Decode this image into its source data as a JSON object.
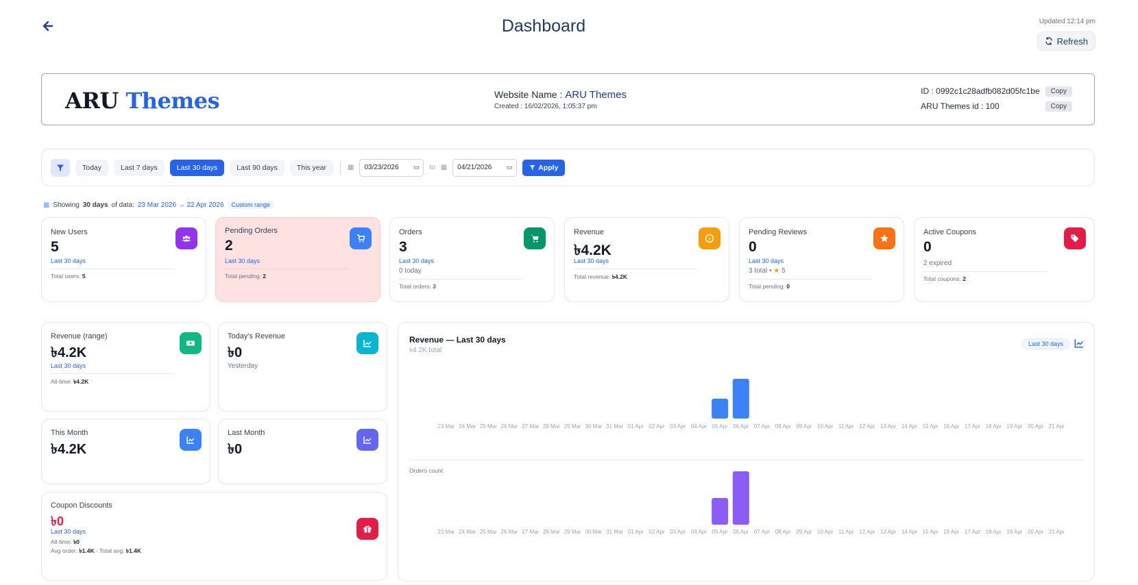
{
  "header": {
    "title": "Dashboard",
    "updated": "Updated 12:14 pm",
    "refresh_label": "Refresh"
  },
  "store": {
    "brand_part1": "ARU",
    "brand_part2": "Themes",
    "website_name_label": "Website Name : ",
    "website_name": "ARU Themes",
    "created": "Created : 16/02/2026, 1:05:37 pm",
    "id_text": "ID : 0992c1c28adfb082d05fc1be",
    "themes_id_text": "ARU Themes id : 100",
    "copy_label": "Copy"
  },
  "filters": {
    "chips": [
      "Today",
      "Last 7 days",
      "Last 30 days",
      "Last 90 days",
      "This year"
    ],
    "active_index": 2,
    "from_date": "03/23/2026",
    "to_label": "to",
    "to_date": "04/21/2026",
    "apply_label": "Apply"
  },
  "showing": {
    "prefix": "Showing",
    "days": "30 days",
    "mid": "of data:",
    "range": "23 Mar 2026 → 22 Apr 2026",
    "badge": "Custom range"
  },
  "stats": {
    "new_users": {
      "label": "New Users",
      "value": "5",
      "sub": "Last 30 days",
      "foot_label": "Total users: ",
      "foot_value": "5"
    },
    "pending_orders": {
      "label": "Pending Orders",
      "value": "2",
      "sub": "Last 30 days",
      "foot_label": "Total pending: ",
      "foot_value": "2"
    },
    "orders": {
      "label": "Orders",
      "value": "3",
      "sub": "Last 30 days",
      "note": "0 today",
      "foot_label": "Total orders: ",
      "foot_value": "3"
    },
    "revenue": {
      "label": "Revenue",
      "value": "৳4.2K",
      "sub": "Last 30 days",
      "foot_label": "Total revenue: ",
      "foot_value": "৳4.2K"
    },
    "pending_reviews": {
      "label": "Pending Reviews",
      "value": "0",
      "sub": "Last 30 days",
      "note_a": "3 total • ",
      "note_b": "5",
      "foot_label": "Total pending: ",
      "foot_value": "0"
    },
    "active_coupons": {
      "label": "Active Coupons",
      "value": "0",
      "note": "2 expired",
      "foot_label": "Total coupons: ",
      "foot_value": "2"
    }
  },
  "money": {
    "revenue_range": {
      "label": "Revenue (range)",
      "value": "৳4.2K",
      "sub": "Last 30 days",
      "foot_label": "All-time: ",
      "foot_value": "৳4.2K"
    },
    "todays_revenue": {
      "label": "Today's Revenue",
      "value": "৳0",
      "note": "Yesterday"
    },
    "this_month": {
      "label": "This Month",
      "value": "৳4.2K"
    },
    "last_month": {
      "label": "Last Month",
      "value": "৳0"
    },
    "coupon_discounts": {
      "label": "Coupon Discounts",
      "value": "৳0",
      "sub": "Last 30 days",
      "foot1_label": "All-time: ",
      "foot1_value": "৳0",
      "foot2_a": "Avg order: ",
      "foot2_b": "৳1.4K",
      "foot2_c": " · Total avg: ",
      "foot2_d": "৳1.4K"
    }
  },
  "chart_panel": {
    "title": "Revenue — Last 30 days",
    "subtitle": "৳4.2K total",
    "pill": "Last 30 days",
    "orders_label": "Orders count"
  },
  "colors": {
    "accent": "#2563eb",
    "revenue_bar": "#3b82f6",
    "orders_bar": "#8b5cf6",
    "pending_bg": "#fee2e2",
    "coupon_value": "#e11d48"
  },
  "chart_data": [
    {
      "type": "bar",
      "title": "Revenue — Last 30 days",
      "categories": [
        "23 Mar",
        "24 Mar",
        "25 Mar",
        "26 Mar",
        "27 Mar",
        "28 Mar",
        "29 Mar",
        "30 Mar",
        "31 Mar",
        "01 Apr",
        "02 Apr",
        "03 Apr",
        "04 Apr",
        "05 Apr",
        "06 Apr",
        "07 Apr",
        "08 Apr",
        "09 Apr",
        "10 Apr",
        "11 Apr",
        "12 Apr",
        "13 Apr",
        "14 Apr",
        "15 Apr",
        "16 Apr",
        "17 Apr",
        "18 Apr",
        "19 Apr",
        "20 Apr",
        "21 Apr"
      ],
      "values": [
        0,
        0,
        0,
        0,
        0,
        0,
        0,
        0,
        0,
        0,
        0,
        0,
        0,
        1400,
        2800,
        0,
        0,
        0,
        0,
        0,
        0,
        0,
        0,
        0,
        0,
        0,
        0,
        0,
        0,
        0
      ],
      "ylim": [
        0,
        2800
      ]
    },
    {
      "type": "bar",
      "title": "Orders count",
      "categories": [
        "23 Mar",
        "24 Mar",
        "25 Mar",
        "26 Mar",
        "27 Mar",
        "28 Mar",
        "29 Mar",
        "30 Mar",
        "31 Mar",
        "01 Apr",
        "02 Apr",
        "03 Apr",
        "04 Apr",
        "05 Apr",
        "06 Apr",
        "07 Apr",
        "08 Apr",
        "09 Apr",
        "10 Apr",
        "11 Apr",
        "12 Apr",
        "13 Apr",
        "14 Apr",
        "15 Apr",
        "16 Apr",
        "17 Apr",
        "18 Apr",
        "19 Apr",
        "20 Apr",
        "21 Apr"
      ],
      "values": [
        0,
        0,
        0,
        0,
        0,
        0,
        0,
        0,
        0,
        0,
        0,
        0,
        0,
        1,
        2,
        0,
        0,
        0,
        0,
        0,
        0,
        0,
        0,
        0,
        0,
        0,
        0,
        0,
        0,
        0
      ],
      "ylim": [
        0,
        2
      ]
    }
  ]
}
